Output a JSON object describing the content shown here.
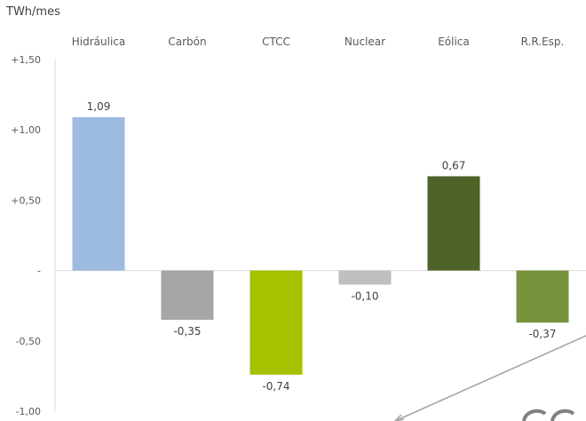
{
  "chart_data": {
    "type": "bar",
    "unit_label": "TWh/mes",
    "categories": [
      "Hidráulica",
      "Carbón",
      "CTCC",
      "Nuclear",
      "Eólica",
      "R.R.Esp."
    ],
    "values": [
      1.09,
      -0.35,
      -0.74,
      -0.1,
      0.67,
      -0.37
    ],
    "value_labels": [
      "1,09",
      "-0,35",
      "-0,74",
      "-0,10",
      "0,67",
      "-0,37"
    ],
    "colors": [
      "#9dbbe1",
      "#a6a6a6",
      "#a5c100",
      "#bfbfbf",
      "#4f6228",
      "#77933c"
    ],
    "yticks": [
      1.5,
      1.0,
      0.5,
      0.0,
      -0.5,
      -1.0
    ],
    "ytick_labels": [
      "+1,50",
      "+1,00",
      "+0,50",
      "-",
      "-0,50",
      "-1,00"
    ],
    "ylim": [
      -1.0,
      1.5
    ],
    "category_axis_position": "top",
    "grid": false,
    "legend": "none"
  }
}
